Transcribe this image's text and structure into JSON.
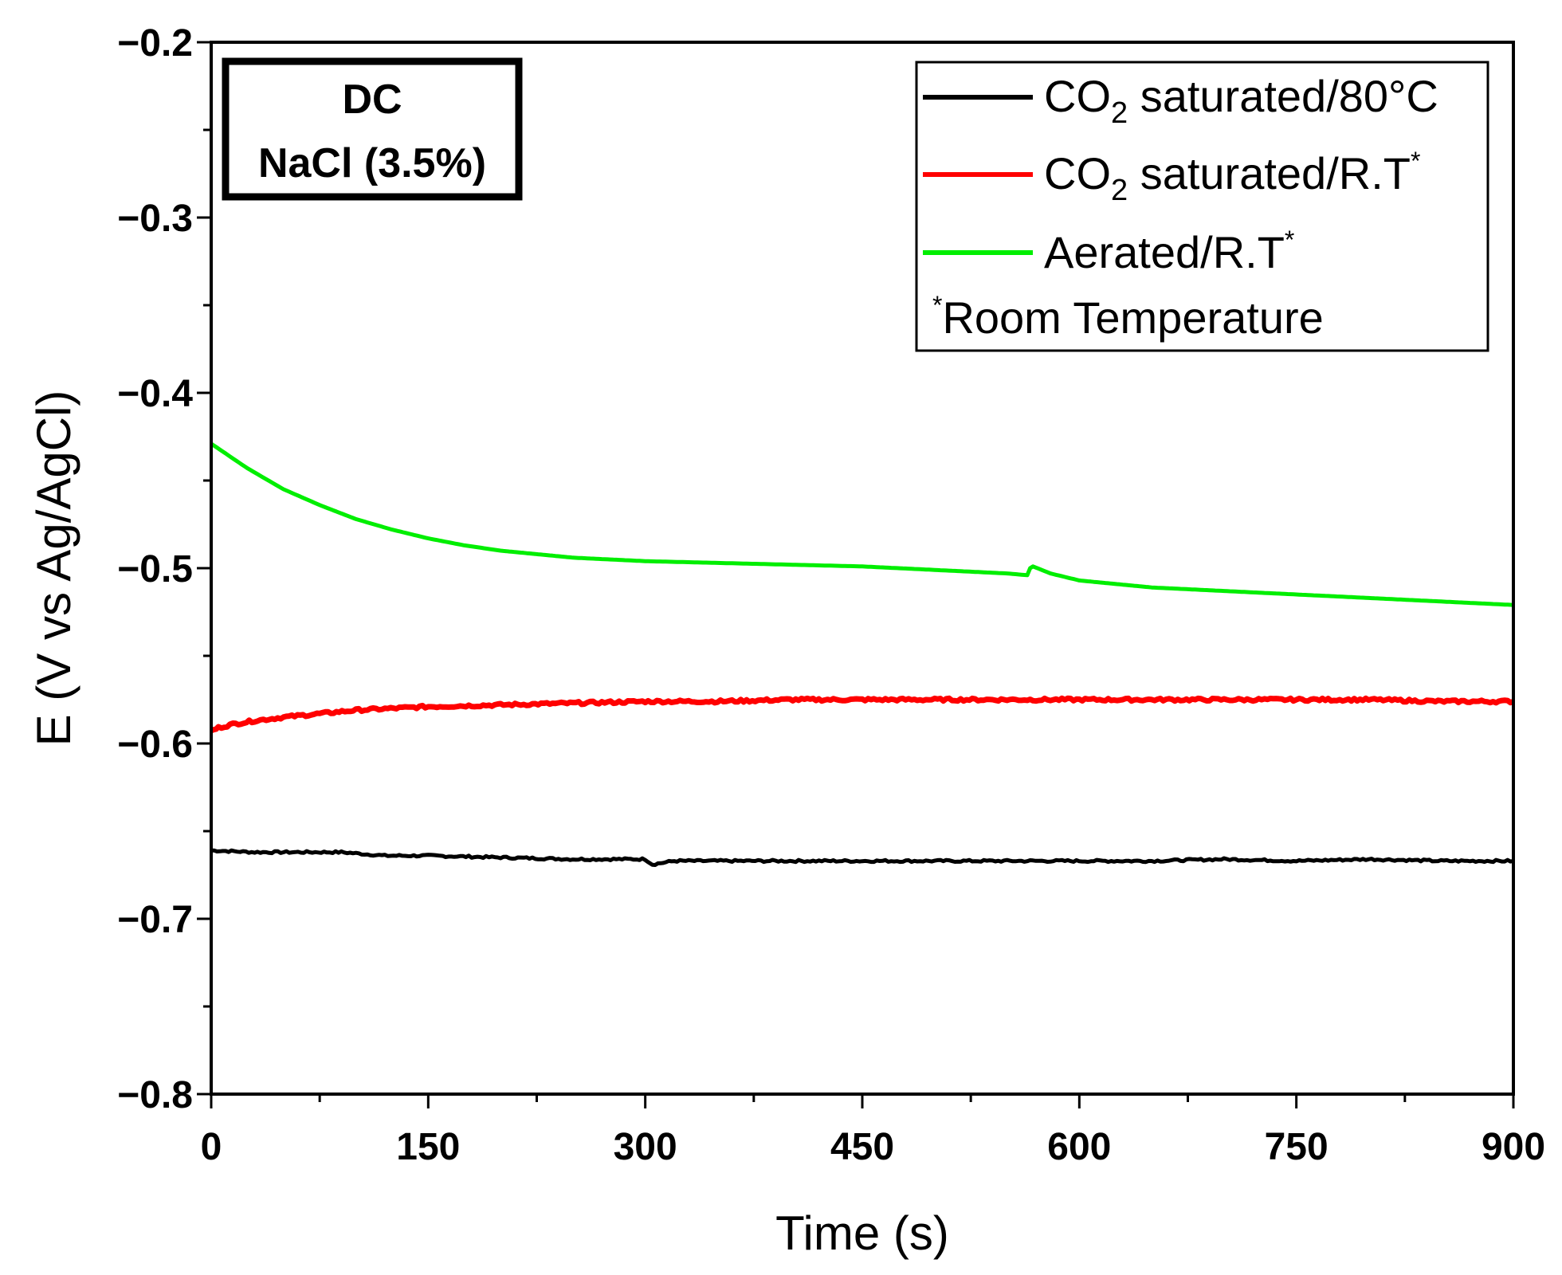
{
  "chart_data": {
    "type": "line",
    "title": "",
    "xlabel": "Time (s)",
    "ylabel": "E (V vs Ag/AgCl)",
    "xlim": [
      0,
      900
    ],
    "ylim": [
      -0.8,
      -0.2
    ],
    "xticks": [
      0,
      150,
      300,
      450,
      600,
      750,
      900
    ],
    "xtick_labels": [
      "0",
      "150",
      "300",
      "450",
      "600",
      "750",
      "900"
    ],
    "yticks": [
      -0.2,
      -0.3,
      -0.4,
      -0.5,
      -0.6,
      -0.7,
      -0.8
    ],
    "ytick_labels": [
      "−0.2",
      "−0.3",
      "−0.4",
      "−0.5",
      "−0.6",
      "−0.7",
      "−0.8"
    ],
    "grid": false,
    "legend_position": "top-right",
    "annotation": {
      "line1": "DC",
      "line2": "NaCl (3.5%)"
    },
    "legend_footnote": {
      "mark": "*",
      "text": "Room Temperature"
    },
    "series": [
      {
        "name": "CO2 saturated/80°C",
        "label_parts": {
          "a": "CO",
          "sub": "2",
          "b": " saturated/80°C",
          "sup": ""
        },
        "color": "#000000",
        "x": [
          0,
          30,
          60,
          90,
          120,
          150,
          200,
          250,
          300,
          305,
          320,
          350,
          400,
          450,
          500,
          550,
          600,
          650,
          700,
          750,
          800,
          850,
          900
        ],
        "y": [
          -0.661,
          -0.662,
          -0.662,
          -0.662,
          -0.664,
          -0.664,
          -0.665,
          -0.666,
          -0.666,
          -0.669,
          -0.667,
          -0.667,
          -0.667,
          -0.667,
          -0.667,
          -0.667,
          -0.667,
          -0.667,
          -0.666,
          -0.667,
          -0.666,
          -0.667,
          -0.667
        ]
      },
      {
        "name": "CO2 saturated/R.T*",
        "label_parts": {
          "a": "CO",
          "sub": "2",
          "b": " saturated/R.T",
          "sup": "*"
        },
        "color": "#ff0000",
        "x": [
          0,
          5,
          15,
          30,
          50,
          75,
          100,
          150,
          200,
          250,
          300,
          350,
          400,
          450,
          500,
          550,
          600,
          650,
          700,
          750,
          800,
          850,
          900
        ],
        "y": [
          -0.593,
          -0.591,
          -0.589,
          -0.587,
          -0.585,
          -0.583,
          -0.581,
          -0.579,
          -0.578,
          -0.577,
          -0.576,
          -0.576,
          -0.575,
          -0.575,
          -0.575,
          -0.575,
          -0.575,
          -0.575,
          -0.575,
          -0.575,
          -0.575,
          -0.576,
          -0.576
        ]
      },
      {
        "name": "Aerated/R.T*",
        "label_parts": {
          "a": "Aerated/R.T",
          "sub": "",
          "b": "",
          "sup": "*"
        },
        "color": "#00ee00",
        "x": [
          0,
          25,
          50,
          75,
          100,
          125,
          150,
          175,
          200,
          250,
          300,
          350,
          400,
          450,
          500,
          550,
          564,
          566,
          568,
          580,
          600,
          650,
          700,
          750,
          800,
          850,
          900
        ],
        "y": [
          -0.429,
          -0.443,
          -0.455,
          -0.464,
          -0.472,
          -0.478,
          -0.483,
          -0.487,
          -0.49,
          -0.494,
          -0.496,
          -0.497,
          -0.498,
          -0.499,
          -0.501,
          -0.503,
          -0.504,
          -0.5,
          -0.499,
          -0.503,
          -0.507,
          -0.511,
          -0.513,
          -0.515,
          -0.517,
          -0.519,
          -0.521
        ]
      }
    ]
  }
}
